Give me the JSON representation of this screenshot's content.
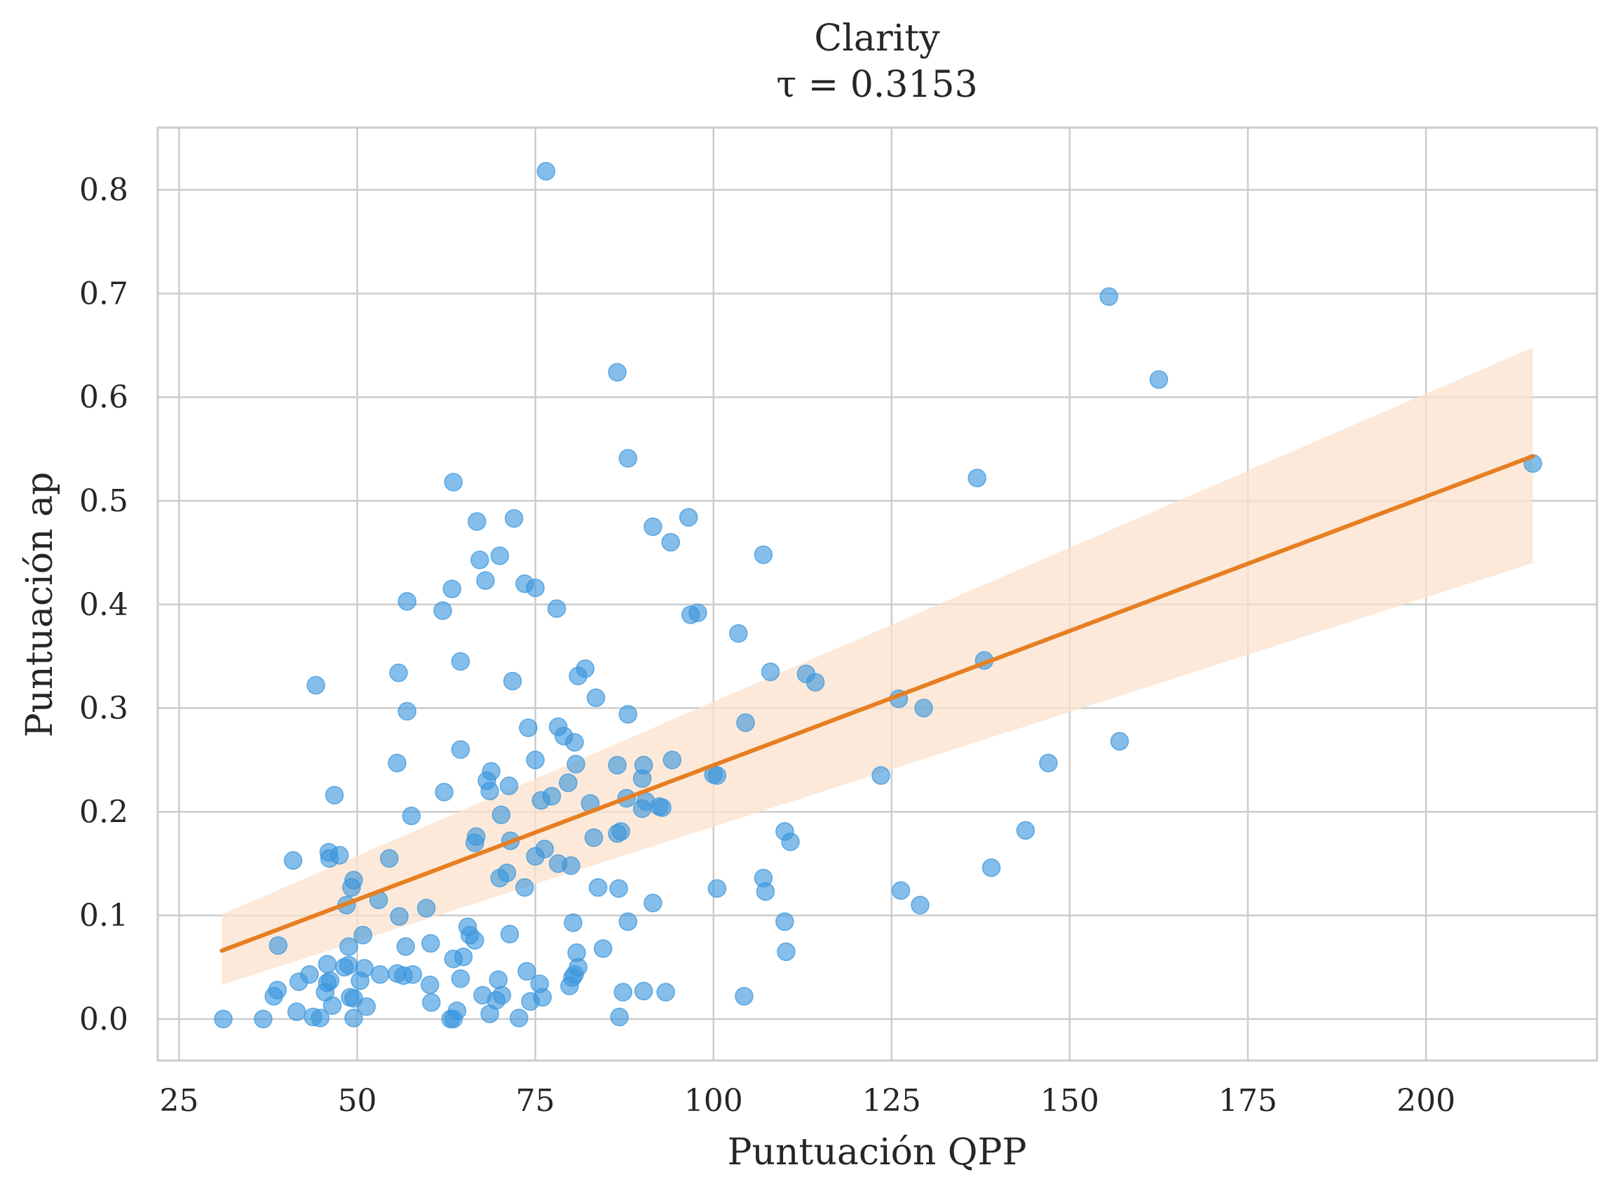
{
  "chart_data": {
    "type": "scatter",
    "title": "Clarity",
    "subtitle": "τ = 0.3153",
    "xlabel": "Puntuación QPP",
    "ylabel": "Puntuación ap",
    "xlim": [
      22,
      224
    ],
    "ylim": [
      -0.04,
      0.86
    ],
    "xticks": [
      25,
      50,
      75,
      100,
      125,
      150,
      175,
      200
    ],
    "xtick_labels": [
      "25",
      "50",
      "75",
      "100",
      "125",
      "150",
      "175",
      "200"
    ],
    "yticks": [
      0.0,
      0.1,
      0.2,
      0.3,
      0.4,
      0.5,
      0.6,
      0.7,
      0.8
    ],
    "ytick_labels": [
      "0.0",
      "0.1",
      "0.2",
      "0.3",
      "0.4",
      "0.5",
      "0.6",
      "0.7",
      "0.8"
    ],
    "grid": true,
    "colors": {
      "points": "#3a96dd",
      "line": "#e67e22",
      "band": "#fbe1cc",
      "grid": "#cccccc",
      "spine": "#cccccc"
    },
    "regression": {
      "x": [
        31,
        215
      ],
      "y": [
        0.066,
        0.543
      ],
      "ci_lower": [
        0.033,
        0.44
      ],
      "ci_upper": [
        0.101,
        0.648
      ]
    },
    "points": [
      [
        76.5,
        0.818
      ],
      [
        155.5,
        0.697
      ],
      [
        86.5,
        0.624
      ],
      [
        162.5,
        0.617
      ],
      [
        215,
        0.536
      ],
      [
        88,
        0.541
      ],
      [
        63.5,
        0.518
      ],
      [
        137,
        0.522
      ],
      [
        66.8,
        0.48
      ],
      [
        72,
        0.483
      ],
      [
        96.5,
        0.484
      ],
      [
        91.5,
        0.475
      ],
      [
        94,
        0.46
      ],
      [
        107,
        0.448
      ],
      [
        70,
        0.447
      ],
      [
        67.2,
        0.443
      ],
      [
        68,
        0.423
      ],
      [
        73.5,
        0.42
      ],
      [
        75,
        0.416
      ],
      [
        63.3,
        0.415
      ],
      [
        57,
        0.403
      ],
      [
        62,
        0.394
      ],
      [
        78,
        0.396
      ],
      [
        96.8,
        0.39
      ],
      [
        97.8,
        0.392
      ],
      [
        103.5,
        0.372
      ],
      [
        64.5,
        0.345
      ],
      [
        82,
        0.338
      ],
      [
        138,
        0.346
      ],
      [
        55.8,
        0.334
      ],
      [
        81,
        0.331
      ],
      [
        108,
        0.335
      ],
      [
        113,
        0.333
      ],
      [
        114.3,
        0.325
      ],
      [
        44.2,
        0.322
      ],
      [
        71.8,
        0.326
      ],
      [
        83.5,
        0.31
      ],
      [
        126,
        0.309
      ],
      [
        129.5,
        0.3
      ],
      [
        57,
        0.297
      ],
      [
        88,
        0.294
      ],
      [
        104.5,
        0.286
      ],
      [
        74,
        0.281
      ],
      [
        78.2,
        0.282
      ],
      [
        79,
        0.273
      ],
      [
        80.5,
        0.267
      ],
      [
        157,
        0.268
      ],
      [
        64.5,
        0.26
      ],
      [
        75,
        0.25
      ],
      [
        94.2,
        0.25
      ],
      [
        55.6,
        0.247
      ],
      [
        80.7,
        0.246
      ],
      [
        86.5,
        0.245
      ],
      [
        90.2,
        0.245
      ],
      [
        147,
        0.247
      ],
      [
        68.8,
        0.239
      ],
      [
        100,
        0.236
      ],
      [
        100.5,
        0.235
      ],
      [
        123.5,
        0.235
      ],
      [
        68.2,
        0.23
      ],
      [
        79.6,
        0.228
      ],
      [
        90,
        0.232
      ],
      [
        68.6,
        0.22
      ],
      [
        62.2,
        0.219
      ],
      [
        71.3,
        0.225
      ],
      [
        46.8,
        0.216
      ],
      [
        77.3,
        0.215
      ],
      [
        75.8,
        0.211
      ],
      [
        87.8,
        0.213
      ],
      [
        82.7,
        0.208
      ],
      [
        90.5,
        0.21
      ],
      [
        92.4,
        0.205
      ],
      [
        92.8,
        0.204
      ],
      [
        90,
        0.203
      ],
      [
        57.6,
        0.196
      ],
      [
        70.2,
        0.197
      ],
      [
        110,
        0.181
      ],
      [
        86.5,
        0.179
      ],
      [
        87,
        0.181
      ],
      [
        143.8,
        0.182
      ],
      [
        66.7,
        0.176
      ],
      [
        83.2,
        0.175
      ],
      [
        66.5,
        0.17
      ],
      [
        71.5,
        0.172
      ],
      [
        110.8,
        0.171
      ],
      [
        76.3,
        0.164
      ],
      [
        46,
        0.161
      ],
      [
        47.5,
        0.158
      ],
      [
        75,
        0.157
      ],
      [
        41,
        0.153
      ],
      [
        46.1,
        0.155
      ],
      [
        54.5,
        0.155
      ],
      [
        78.2,
        0.15
      ],
      [
        80,
        0.148
      ],
      [
        139,
        0.146
      ],
      [
        71,
        0.141
      ],
      [
        70,
        0.136
      ],
      [
        107,
        0.136
      ],
      [
        49.5,
        0.134
      ],
      [
        49.2,
        0.127
      ],
      [
        73.5,
        0.127
      ],
      [
        83.8,
        0.127
      ],
      [
        86.7,
        0.126
      ],
      [
        100.5,
        0.126
      ],
      [
        107.3,
        0.123
      ],
      [
        126.3,
        0.124
      ],
      [
        53,
        0.115
      ],
      [
        48.5,
        0.11
      ],
      [
        91.5,
        0.112
      ],
      [
        129,
        0.11
      ],
      [
        59.7,
        0.107
      ],
      [
        55.9,
        0.099
      ],
      [
        88,
        0.094
      ],
      [
        80.3,
        0.093
      ],
      [
        110,
        0.094
      ],
      [
        65.5,
        0.089
      ],
      [
        65.8,
        0.081
      ],
      [
        50.8,
        0.081
      ],
      [
        71.4,
        0.082
      ],
      [
        66.5,
        0.076
      ],
      [
        60.3,
        0.073
      ],
      [
        38.9,
        0.071
      ],
      [
        48.8,
        0.07
      ],
      [
        56.8,
        0.07
      ],
      [
        84.5,
        0.068
      ],
      [
        80.8,
        0.064
      ],
      [
        110.2,
        0.065
      ],
      [
        64.9,
        0.06
      ],
      [
        63.5,
        0.058
      ],
      [
        45.8,
        0.053
      ],
      [
        48.2,
        0.05
      ],
      [
        48.8,
        0.052
      ],
      [
        51,
        0.049
      ],
      [
        81,
        0.05
      ],
      [
        73.8,
        0.046
      ],
      [
        53.2,
        0.043
      ],
      [
        55.6,
        0.044
      ],
      [
        56.5,
        0.042
      ],
      [
        57.8,
        0.043
      ],
      [
        43.3,
        0.043
      ],
      [
        80.5,
        0.043
      ],
      [
        80.2,
        0.04
      ],
      [
        64.5,
        0.039
      ],
      [
        69.8,
        0.038
      ],
      [
        41.8,
        0.036
      ],
      [
        50.4,
        0.037
      ],
      [
        46.2,
        0.037
      ],
      [
        45.8,
        0.035
      ],
      [
        75.6,
        0.034
      ],
      [
        79.8,
        0.032
      ],
      [
        60.2,
        0.033
      ],
      [
        38.8,
        0.028
      ],
      [
        87.3,
        0.026
      ],
      [
        90.2,
        0.027
      ],
      [
        93.3,
        0.026
      ],
      [
        45.5,
        0.026
      ],
      [
        38.3,
        0.022
      ],
      [
        67.6,
        0.023
      ],
      [
        70.3,
        0.023
      ],
      [
        104.3,
        0.022
      ],
      [
        49,
        0.021
      ],
      [
        49.5,
        0.02
      ],
      [
        76,
        0.021
      ],
      [
        69.5,
        0.018
      ],
      [
        74.3,
        0.017
      ],
      [
        60.4,
        0.016
      ],
      [
        46.5,
        0.013
      ],
      [
        51.3,
        0.012
      ],
      [
        41.5,
        0.007
      ],
      [
        64,
        0.008
      ],
      [
        68.6,
        0.005
      ],
      [
        43.8,
        0.002
      ],
      [
        44.8,
        0.001
      ],
      [
        49.5,
        0.001
      ],
      [
        72.7,
        0.001
      ],
      [
        86.8,
        0.002
      ],
      [
        31.2,
        0.0
      ],
      [
        36.8,
        0.0
      ],
      [
        63.1,
        0.0
      ],
      [
        63.5,
        0.0
      ]
    ]
  }
}
